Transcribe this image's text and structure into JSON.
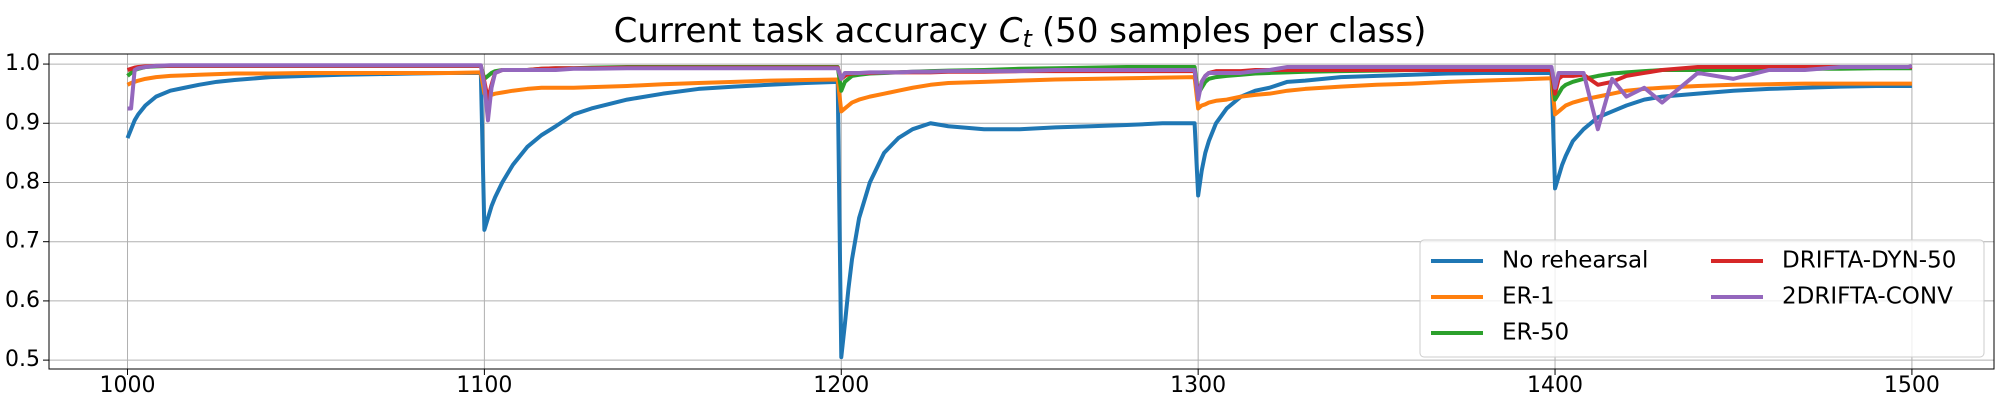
{
  "chart_data": {
    "type": "line",
    "title": {
      "text": "Current task accuracy",
      "symbol": "C",
      "subscript": "t",
      "suffix": "(50 samples per class)"
    },
    "x": [
      1000,
      1001,
      1002,
      1003,
      1005,
      1008,
      1012,
      1016,
      1020,
      1025,
      1030,
      1040,
      1050,
      1060,
      1070,
      1080,
      1090,
      1099,
      1100,
      1101,
      1102,
      1103,
      1105,
      1108,
      1112,
      1116,
      1120,
      1125,
      1130,
      1140,
      1150,
      1160,
      1170,
      1180,
      1190,
      1199,
      1200,
      1201,
      1202,
      1203,
      1205,
      1208,
      1212,
      1216,
      1220,
      1225,
      1230,
      1240,
      1250,
      1260,
      1270,
      1280,
      1290,
      1299,
      1300,
      1301,
      1302,
      1303,
      1305,
      1308,
      1312,
      1316,
      1320,
      1325,
      1330,
      1340,
      1350,
      1360,
      1370,
      1380,
      1390,
      1399,
      1400,
      1401,
      1402,
      1403,
      1405,
      1408,
      1412,
      1416,
      1420,
      1425,
      1430,
      1440,
      1450,
      1460,
      1470,
      1480,
      1490,
      1499,
      1500
    ],
    "series": [
      {
        "name": "No rehearsal",
        "color": "#1f77b4",
        "values": [
          0.875,
          0.89,
          0.905,
          0.915,
          0.93,
          0.945,
          0.955,
          0.96,
          0.965,
          0.97,
          0.973,
          0.978,
          0.98,
          0.982,
          0.983,
          0.984,
          0.985,
          0.985,
          0.72,
          0.74,
          0.76,
          0.775,
          0.8,
          0.83,
          0.86,
          0.88,
          0.895,
          0.915,
          0.925,
          0.94,
          0.95,
          0.958,
          0.962,
          0.965,
          0.968,
          0.97,
          0.505,
          0.56,
          0.62,
          0.67,
          0.74,
          0.8,
          0.85,
          0.875,
          0.89,
          0.9,
          0.895,
          0.89,
          0.89,
          0.893,
          0.895,
          0.897,
          0.9,
          0.9,
          0.778,
          0.82,
          0.85,
          0.87,
          0.9,
          0.925,
          0.945,
          0.955,
          0.96,
          0.97,
          0.972,
          0.978,
          0.98,
          0.982,
          0.984,
          0.985,
          0.985,
          0.985,
          0.79,
          0.81,
          0.83,
          0.845,
          0.87,
          0.89,
          0.91,
          0.92,
          0.93,
          0.94,
          0.945,
          0.95,
          0.955,
          0.958,
          0.96,
          0.962,
          0.963,
          0.963,
          0.963
        ]
      },
      {
        "name": "ER-1",
        "color": "#ff7f0e",
        "values": [
          0.965,
          0.968,
          0.97,
          0.972,
          0.975,
          0.978,
          0.98,
          0.981,
          0.982,
          0.983,
          0.984,
          0.984,
          0.985,
          0.985,
          0.985,
          0.985,
          0.985,
          0.986,
          0.95,
          0.948,
          0.948,
          0.95,
          0.952,
          0.955,
          0.958,
          0.96,
          0.96,
          0.96,
          0.961,
          0.963,
          0.966,
          0.968,
          0.97,
          0.972,
          0.973,
          0.974,
          0.92,
          0.925,
          0.93,
          0.935,
          0.94,
          0.945,
          0.95,
          0.955,
          0.96,
          0.965,
          0.968,
          0.97,
          0.972,
          0.974,
          0.975,
          0.976,
          0.977,
          0.978,
          0.925,
          0.93,
          0.932,
          0.935,
          0.938,
          0.94,
          0.945,
          0.948,
          0.95,
          0.955,
          0.958,
          0.962,
          0.965,
          0.967,
          0.97,
          0.972,
          0.974,
          0.976,
          0.915,
          0.92,
          0.925,
          0.93,
          0.935,
          0.94,
          0.945,
          0.95,
          0.955,
          0.958,
          0.96,
          0.963,
          0.965,
          0.966,
          0.967,
          0.967,
          0.967,
          0.967,
          0.967
        ]
      },
      {
        "name": "ER-50",
        "color": "#2ca02c",
        "values": [
          0.98,
          0.985,
          0.99,
          0.992,
          0.995,
          0.996,
          0.997,
          0.997,
          0.997,
          0.997,
          0.997,
          0.997,
          0.997,
          0.997,
          0.997,
          0.997,
          0.997,
          0.997,
          0.975,
          0.98,
          0.985,
          0.988,
          0.99,
          0.99,
          0.99,
          0.992,
          0.993,
          0.993,
          0.994,
          0.995,
          0.995,
          0.995,
          0.995,
          0.995,
          0.995,
          0.995,
          0.955,
          0.97,
          0.975,
          0.98,
          0.982,
          0.984,
          0.985,
          0.986,
          0.987,
          0.988,
          0.989,
          0.99,
          0.992,
          0.993,
          0.994,
          0.995,
          0.995,
          0.995,
          0.95,
          0.96,
          0.97,
          0.975,
          0.978,
          0.98,
          0.982,
          0.984,
          0.985,
          0.986,
          0.987,
          0.988,
          0.989,
          0.99,
          0.99,
          0.99,
          0.99,
          0.99,
          0.94,
          0.95,
          0.96,
          0.965,
          0.97,
          0.975,
          0.98,
          0.984,
          0.986,
          0.988,
          0.99,
          0.99,
          0.99,
          0.99,
          0.992,
          0.992,
          0.993,
          0.993,
          0.993
        ]
      },
      {
        "name": "DRIFTA-DYN-50",
        "color": "#d62728",
        "values": [
          0.99,
          0.992,
          0.994,
          0.995,
          0.996,
          0.997,
          0.997,
          0.997,
          0.997,
          0.997,
          0.997,
          0.997,
          0.997,
          0.997,
          0.997,
          0.997,
          0.997,
          0.997,
          0.97,
          0.94,
          0.965,
          0.985,
          0.99,
          0.99,
          0.99,
          0.992,
          0.993,
          0.993,
          0.993,
          0.994,
          0.994,
          0.994,
          0.994,
          0.994,
          0.994,
          0.994,
          0.975,
          0.98,
          0.983,
          0.984,
          0.985,
          0.985,
          0.986,
          0.986,
          0.986,
          0.986,
          0.987,
          0.987,
          0.988,
          0.988,
          0.988,
          0.988,
          0.988,
          0.988,
          0.945,
          0.97,
          0.98,
          0.985,
          0.988,
          0.988,
          0.988,
          0.99,
          0.99,
          0.99,
          0.99,
          0.99,
          0.99,
          0.99,
          0.99,
          0.99,
          0.99,
          0.99,
          0.95,
          0.975,
          0.98,
          0.98,
          0.98,
          0.982,
          0.965,
          0.97,
          0.98,
          0.985,
          0.99,
          0.995,
          0.995,
          0.995,
          0.995,
          0.995,
          0.995,
          0.995,
          0.995
        ]
      },
      {
        "name": "2DRIFTA-CONV",
        "color": "#9467bd",
        "values": [
          0.925,
          0.925,
          0.99,
          0.993,
          0.995,
          0.997,
          0.998,
          0.998,
          0.998,
          0.998,
          0.998,
          0.998,
          0.998,
          0.998,
          0.998,
          0.998,
          0.998,
          0.998,
          0.965,
          0.905,
          0.96,
          0.985,
          0.99,
          0.99,
          0.99,
          0.99,
          0.99,
          0.992,
          0.992,
          0.993,
          0.993,
          0.993,
          0.993,
          0.993,
          0.993,
          0.993,
          0.975,
          0.985,
          0.985,
          0.985,
          0.985,
          0.986,
          0.986,
          0.986,
          0.987,
          0.987,
          0.988,
          0.988,
          0.988,
          0.99,
          0.99,
          0.99,
          0.99,
          0.99,
          0.94,
          0.97,
          0.98,
          0.985,
          0.985,
          0.985,
          0.985,
          0.988,
          0.99,
          0.995,
          0.995,
          0.995,
          0.995,
          0.995,
          0.995,
          0.995,
          0.995,
          0.995,
          0.96,
          0.985,
          0.985,
          0.985,
          0.985,
          0.985,
          0.89,
          0.975,
          0.945,
          0.96,
          0.935,
          0.985,
          0.975,
          0.99,
          0.99,
          0.995,
          0.995,
          0.995,
          0.997
        ]
      }
    ],
    "xlim": [
      978,
      1523
    ],
    "ylim": [
      0.485,
      1.017
    ],
    "xticks": [
      1000,
      1100,
      1200,
      1300,
      1400,
      1500
    ],
    "yticks": [
      {
        "value": 0.5,
        "label": "0.5"
      },
      0.6,
      0.7,
      0.8,
      0.9,
      {
        "value": 1,
        "label": "1.0"
      }
    ],
    "grid": true,
    "legend": "lower right"
  }
}
